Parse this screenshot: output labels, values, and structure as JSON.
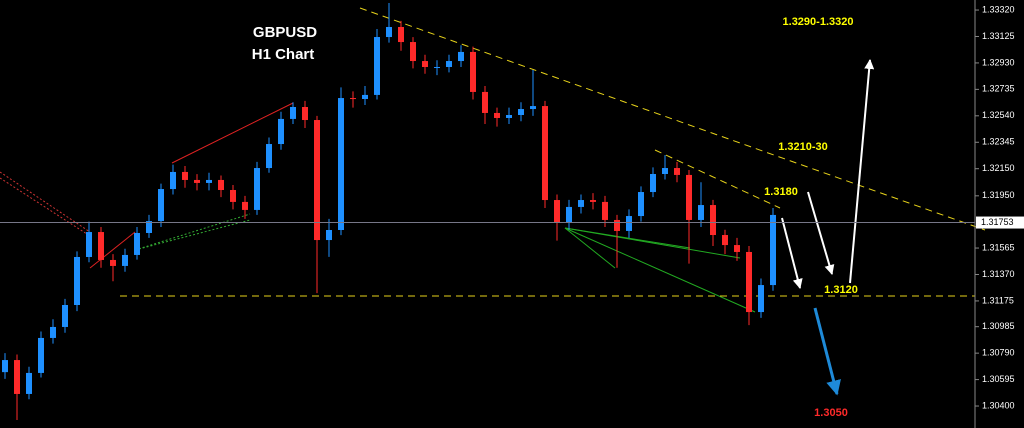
{
  "chart_data": {
    "type": "candlestick",
    "title": "GBPUSD",
    "subtitle": "H1 Chart",
    "up_color": "#1e90ff",
    "down_color": "#ff2a2a",
    "ylim": [
      1.30238,
      1.33394
    ],
    "yticks": [
      {
        "value": 1.3332,
        "label": "1.33320"
      },
      1.33125,
      {
        "value": 1.3293,
        "label": "1.32930"
      },
      1.32735,
      {
        "value": 1.3254,
        "label": "1.32540"
      },
      1.32345,
      {
        "value": 1.3215,
        "label": "1.32150"
      },
      {
        "value": 1.3195,
        "label": "1.31950"
      },
      1.31565,
      {
        "value": 1.3137,
        "label": "1.31370"
      },
      1.31175,
      1.30985,
      {
        "value": 1.3079,
        "label": "1.30790"
      },
      1.30595,
      {
        "value": 1.304,
        "label": "1.30400"
      }
    ],
    "current_price": 1.31753,
    "annotations": [
      "1.3290-1.3320",
      "1.3210-30",
      "1.3180",
      "1.3120",
      "1.3050"
    ],
    "open": [
      1.3065,
      1.30739,
      1.30489,
      1.30644,
      1.30902,
      1.30983,
      1.31145,
      1.31499,
      1.31683,
      1.31477,
      1.31433,
      1.31514,
      1.31676,
      1.31764,
      1.32,
      1.32126,
      1.32067,
      1.32045,
      1.32067,
      1.31993,
      1.31905,
      1.31846,
      1.32155,
      1.32332,
      1.32517,
      1.32605,
      1.32509,
      1.31624,
      1.31698,
      1.32671,
      1.32664,
      1.32694,
      1.33121,
      1.33195,
      1.33084,
      1.32944,
      1.329,
      1.329,
      1.32944,
      1.33011,
      1.32716,
      1.32561,
      1.32524,
      1.32546,
      1.3259,
      1.32612,
      1.31919,
      1.3175,
      1.31868,
      1.31919,
      1.31905,
      1.31772,
      1.31691,
      1.31801,
      1.31978,
      1.32111,
      1.32155,
      1.32104,
      1.31772,
      1.31882,
      1.31661,
      1.31587,
      1.31536,
      1.31093,
      1.31292
    ],
    "high": [
      1.3079,
      1.3078,
      1.3069,
      1.3095,
      1.3104,
      1.3119,
      1.3154,
      1.3176,
      1.3172,
      1.3152,
      1.3156,
      1.3172,
      1.3181,
      1.3204,
      1.3218,
      1.3217,
      1.3211,
      1.3212,
      1.321,
      1.3203,
      1.3195,
      1.322,
      1.3238,
      1.3257,
      1.3264,
      1.3265,
      1.3254,
      1.3178,
      1.3275,
      1.3272,
      1.3276,
      1.3318,
      1.33372,
      1.3324,
      1.3312,
      1.3299,
      1.3295,
      1.3299,
      1.3306,
      1.3305,
      1.3276,
      1.326,
      1.326,
      1.3264,
      1.32878,
      1.3265,
      1.3196,
      1.3192,
      1.3196,
      1.3197,
      1.3195,
      1.3181,
      1.3185,
      1.3202,
      1.3216,
      1.3225,
      1.322,
      1.3214,
      1.3205,
      1.3192,
      1.317,
      1.3164,
      1.3158,
      1.3134,
      1.3186
    ],
    "low": [
      1.306,
      1.30297,
      1.3045,
      1.3061,
      1.3086,
      1.3094,
      1.311,
      1.3146,
      1.3142,
      1.3132,
      1.3139,
      1.3148,
      1.3164,
      1.3172,
      1.3196,
      1.3201,
      1.3199,
      1.3199,
      1.3194,
      1.3185,
      1.3178,
      1.3181,
      1.3212,
      1.3229,
      1.3248,
      1.3245,
      1.31233,
      1.315,
      1.3166,
      1.326,
      1.3262,
      1.3266,
      1.3308,
      1.3302,
      1.3289,
      1.3285,
      1.3284,
      1.3286,
      1.329,
      1.3266,
      1.3248,
      1.3246,
      1.3248,
      1.325,
      1.3254,
      1.3186,
      1.3162,
      1.317,
      1.3182,
      1.3185,
      1.3172,
      1.3142,
      1.3164,
      1.3176,
      1.3194,
      1.3207,
      1.3205,
      1.3145,
      1.3172,
      1.3158,
      1.3152,
      1.3147,
      1.30997,
      1.3105,
      1.3125
    ],
    "close": [
      1.30739,
      1.30489,
      1.30644,
      1.30902,
      1.30983,
      1.31145,
      1.31499,
      1.31683,
      1.31477,
      1.31433,
      1.31514,
      1.31676,
      1.31764,
      1.32,
      1.32126,
      1.32067,
      1.32045,
      1.32067,
      1.31993,
      1.31905,
      1.31846,
      1.32155,
      1.32332,
      1.32517,
      1.32605,
      1.32509,
      1.31624,
      1.31698,
      1.32671,
      1.32664,
      1.32694,
      1.33121,
      1.33195,
      1.33084,
      1.32944,
      1.329,
      1.329,
      1.32944,
      1.33011,
      1.32716,
      1.32561,
      1.32524,
      1.32546,
      1.3259,
      1.32612,
      1.31919,
      1.3175,
      1.31868,
      1.31919,
      1.31905,
      1.31772,
      1.31691,
      1.31801,
      1.31978,
      1.32111,
      1.32155,
      1.32104,
      1.31772,
      1.31882,
      1.31661,
      1.31587,
      1.31536,
      1.31093,
      1.31292,
      1.31809
    ]
  }
}
